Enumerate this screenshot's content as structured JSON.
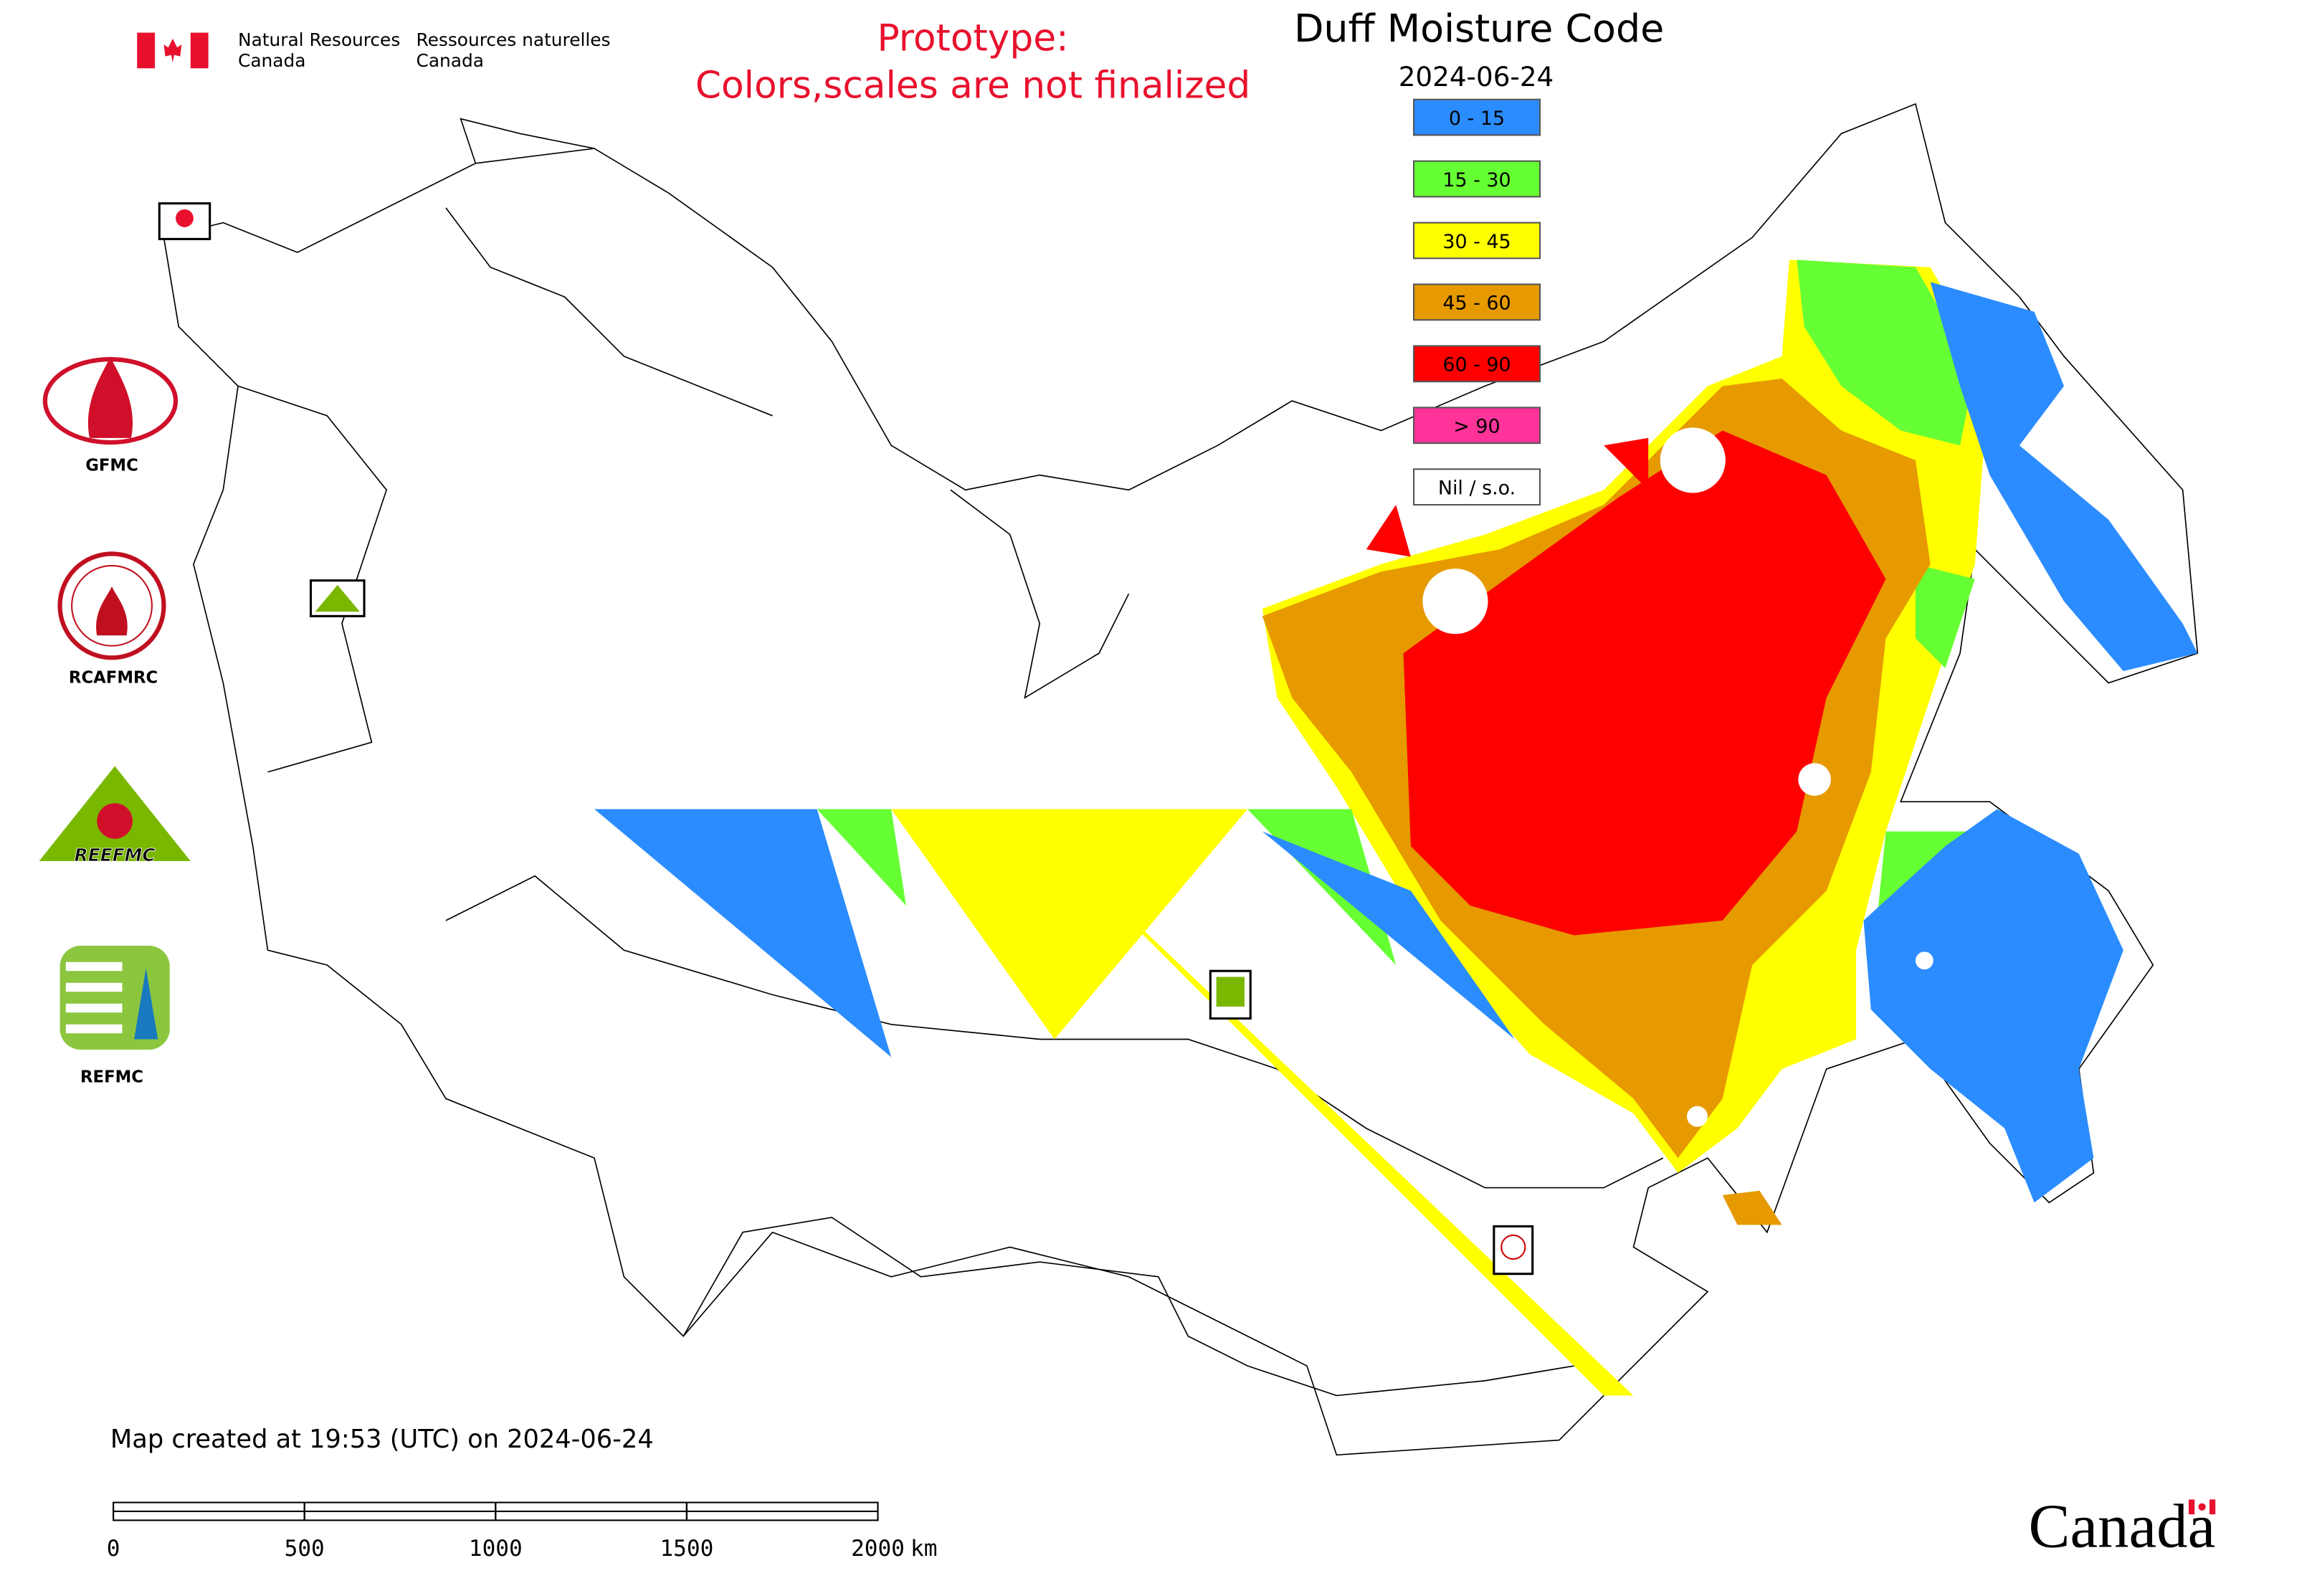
{
  "header": {
    "agency_en": [
      "Natural Resources",
      "Canada"
    ],
    "agency_fr": [
      "Ressources naturelles",
      "Canada"
    ],
    "notice": [
      "Prototype:",
      "Colors,scales are not finalized"
    ]
  },
  "map": {
    "title": "Duff Moisture Code",
    "date": "2024-06-24",
    "legend": [
      {
        "label": "0 - 15",
        "color": "#2b8cff"
      },
      {
        "label": "15 - 30",
        "color": "#66ff33"
      },
      {
        "label": "30 - 45",
        "color": "#ffff00"
      },
      {
        "label": "45 - 60",
        "color": "#e69a00"
      },
      {
        "label": "60 - 90",
        "color": "#ff0000"
      },
      {
        "label": "> 90",
        "color": "#ff3399"
      },
      {
        "label": "Nil / s.o.",
        "color": "#ffffff"
      }
    ]
  },
  "logos": {
    "gfmc": "GFMC",
    "rcafmrc": "RCAFMRC",
    "reefmc": "REEFMC",
    "refmc": "REFMC"
  },
  "footer": {
    "created": "Map created at 19:53 (UTC) on 2024-06-24",
    "scale_ticks": [
      0,
      500,
      1000,
      1500,
      2000
    ],
    "scale_unit": "km",
    "wordmark": "Canada"
  }
}
